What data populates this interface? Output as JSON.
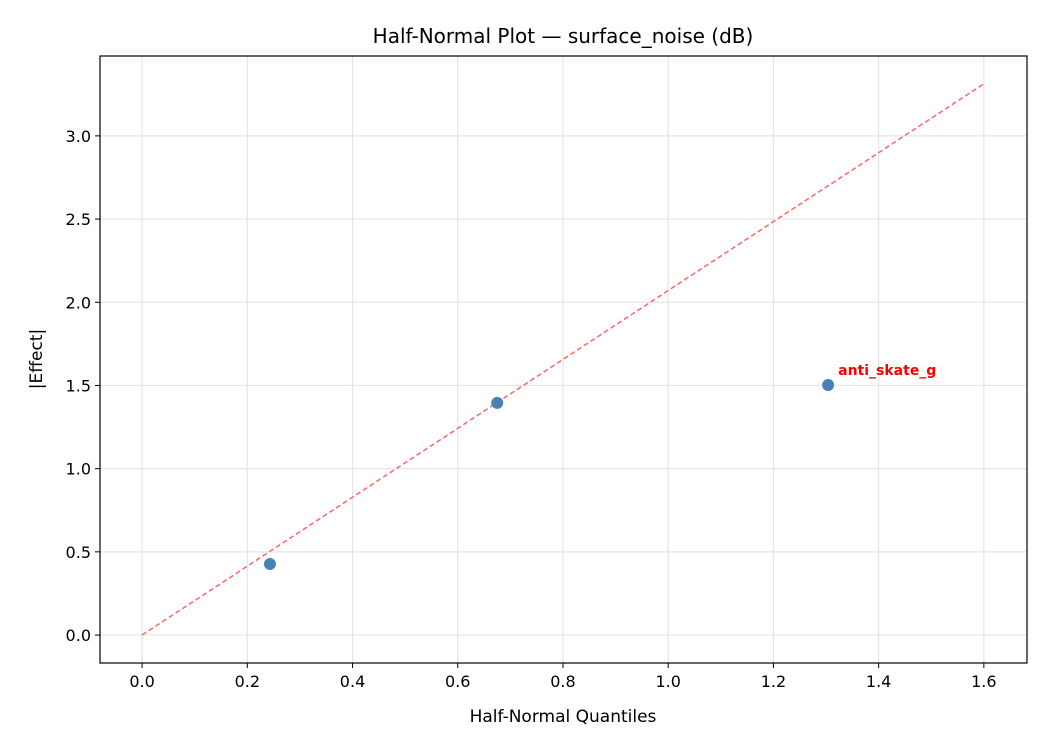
{
  "chart_data": {
    "type": "scatter",
    "title": "Half-Normal Plot — surface_noise (dB)",
    "xlabel": "Half-Normal Quantiles",
    "ylabel": "|Effect|",
    "xlim": [
      -0.08,
      1.682
    ],
    "ylim": [
      -0.168,
      3.48
    ],
    "xticks": [
      0.0,
      0.2,
      0.4,
      0.6,
      0.8,
      1.0,
      1.2,
      1.4,
      1.6
    ],
    "xtick_labels": [
      "0.0",
      "0.2",
      "0.4",
      "0.6",
      "0.8",
      "1.0",
      "1.2",
      "1.4",
      "1.6"
    ],
    "yticks": [
      0.0,
      0.5,
      1.0,
      1.5,
      2.0,
      2.5,
      3.0
    ],
    "ytick_labels": [
      "0.0",
      "0.5",
      "1.0",
      "1.5",
      "2.0",
      "2.5",
      "3.0"
    ],
    "grid": true,
    "points": [
      {
        "x": 0.243,
        "y": 0.427,
        "label": ""
      },
      {
        "x": 0.675,
        "y": 1.395,
        "label": ""
      },
      {
        "x": 1.304,
        "y": 1.503,
        "label": "anti_skate_g"
      }
    ],
    "reference_line": {
      "x": [
        0.0,
        1.6
      ],
      "y": [
        0.0,
        3.313
      ],
      "style": "dashed"
    },
    "colors": {
      "points": "#4682b4",
      "line": "#ff6666",
      "annotation": "#ff0000",
      "grid": "#e5e5e5"
    }
  }
}
